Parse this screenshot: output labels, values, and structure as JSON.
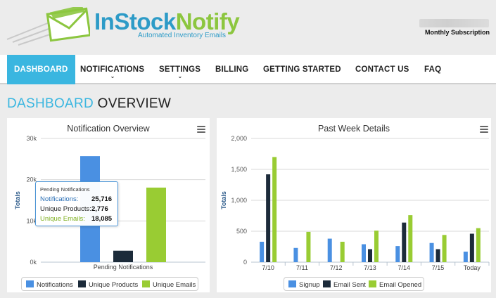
{
  "header": {
    "brand_part1": "InStock",
    "brand_part2": "Notify",
    "tagline": "Automated Inventory Emails",
    "account_plan": "Monthly Subscription"
  },
  "nav": {
    "items": [
      {
        "label": "DASHBOARD",
        "active": true
      },
      {
        "label": "NOTIFICATIONS",
        "dropdown": true
      },
      {
        "label": "SETTINGS",
        "dropdown": true
      },
      {
        "label": "BILLING"
      },
      {
        "label": "GETTING STARTED"
      },
      {
        "label": "CONTACT US"
      },
      {
        "label": "FAQ"
      }
    ]
  },
  "page": {
    "title_part1": "DASHBOARD",
    "title_part2": "OVERVIEW"
  },
  "colors": {
    "accent": "#3ab6e0",
    "brand_green": "#8cc63f",
    "series_blue": "#4a90e2",
    "series_navy": "#1c2b3a",
    "series_green": "#99cc33"
  },
  "chart_data": [
    {
      "type": "bar",
      "title": "Notification Overview",
      "ylabel": "Totals",
      "categories": [
        "Pending Notifications"
      ],
      "ylim": [
        0,
        30000
      ],
      "yticks": [
        "0k",
        "10k",
        "20k",
        "30k"
      ],
      "series": [
        {
          "name": "Notifications",
          "values": [
            25716
          ],
          "color": "#4a90e2"
        },
        {
          "name": "Unique Products",
          "values": [
            2776
          ],
          "color": "#1c2b3a"
        },
        {
          "name": "Unique Emails",
          "values": [
            18085
          ],
          "color": "#99cc33"
        }
      ],
      "tooltip": {
        "header": "Pending Notifications",
        "rows": [
          {
            "label": "Notifications:",
            "value": "25,716",
            "color": "#2a6fb5"
          },
          {
            "label": "Unique Products:",
            "value": "2,776",
            "color": "#222222"
          },
          {
            "label": "Unique Emails:",
            "value": "18,085",
            "color": "#7fb020"
          }
        ]
      },
      "legend": "bottom"
    },
    {
      "type": "bar",
      "title": "Past Week Details",
      "ylabel": "Totals",
      "categories": [
        "7/10",
        "7/11",
        "7/12",
        "7/13",
        "7/14",
        "7/15",
        "Today"
      ],
      "ylim": [
        0,
        2000
      ],
      "yticks": [
        "0",
        "500",
        "1,000",
        "1,500",
        "2,000"
      ],
      "series": [
        {
          "name": "Signup",
          "values": [
            330,
            230,
            380,
            290,
            260,
            310,
            170
          ],
          "color": "#4a90e2"
        },
        {
          "name": "Email Sent",
          "values": [
            1420,
            0,
            0,
            210,
            640,
            210,
            460
          ],
          "color": "#1c2b3a"
        },
        {
          "name": "Email Opened",
          "values": [
            1700,
            490,
            330,
            510,
            760,
            440,
            550
          ],
          "color": "#99cc33"
        }
      ],
      "legend": "bottom"
    }
  ]
}
